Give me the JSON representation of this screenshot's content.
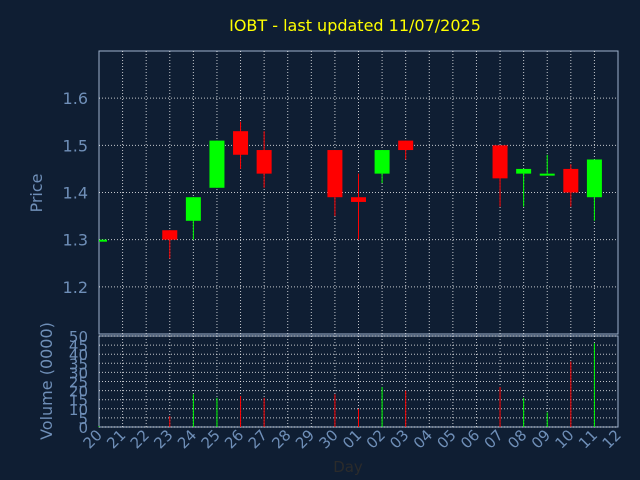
{
  "chart_data": {
    "type": "candlestick",
    "title": "IOBT - last updated 11/07/2025",
    "xlabel": "Day",
    "price_axis": {
      "label": "Price",
      "ylim": [
        1.1,
        1.7
      ],
      "ticks": [
        "1.2",
        "1.3",
        "1.4",
        "1.5",
        "1.6"
      ]
    },
    "volume_axis": {
      "label": "Volume (0000)",
      "ylim": [
        0,
        50
      ],
      "ticks": [
        "0",
        "5",
        "10",
        "15",
        "20",
        "25",
        "30",
        "35",
        "40",
        "45",
        "50"
      ]
    },
    "x_ticks": [
      "20",
      "21",
      "22",
      "23",
      "24",
      "25",
      "26",
      "27",
      "28",
      "29",
      "30",
      "01",
      "02",
      "03",
      "04",
      "05",
      "06",
      "07",
      "08",
      "09",
      "10",
      "11",
      "12"
    ],
    "grid": true,
    "colors": {
      "background": "#0f1e33",
      "up": "#00ff00",
      "down": "#ff0000",
      "title": "#ffff00",
      "axis_text": "#6f8fb8",
      "grid": "#ffffff"
    },
    "candles": [
      {
        "day": "20",
        "open": 1.3,
        "high": 1.3,
        "low": 1.3,
        "close": 1.3,
        "volume": 0.5
      },
      {
        "day": "23",
        "open": 1.32,
        "high": 1.32,
        "low": 1.26,
        "close": 1.3,
        "volume": 6
      },
      {
        "day": "24",
        "open": 1.34,
        "high": 1.39,
        "low": 1.3,
        "close": 1.39,
        "volume": 18
      },
      {
        "day": "25",
        "open": 1.41,
        "high": 1.51,
        "low": 1.41,
        "close": 1.51,
        "volume": 16
      },
      {
        "day": "26",
        "open": 1.53,
        "high": 1.55,
        "low": 1.45,
        "close": 1.48,
        "volume": 17
      },
      {
        "day": "27",
        "open": 1.49,
        "high": 1.53,
        "low": 1.41,
        "close": 1.44,
        "volume": 16
      },
      {
        "day": "30",
        "open": 1.49,
        "high": 1.49,
        "low": 1.35,
        "close": 1.39,
        "volume": 18
      },
      {
        "day": "01",
        "open": 1.39,
        "high": 1.44,
        "low": 1.3,
        "close": 1.38,
        "volume": 10
      },
      {
        "day": "02",
        "open": 1.44,
        "high": 1.49,
        "low": 1.42,
        "close": 1.49,
        "volume": 22
      },
      {
        "day": "03",
        "open": 1.51,
        "high": 1.51,
        "low": 1.47,
        "close": 1.49,
        "volume": 20
      },
      {
        "day": "07",
        "open": 1.5,
        "high": 1.5,
        "low": 1.37,
        "close": 1.43,
        "volume": 22
      },
      {
        "day": "08",
        "open": 1.44,
        "high": 1.45,
        "low": 1.37,
        "close": 1.45,
        "volume": 16
      },
      {
        "day": "09",
        "open": 1.44,
        "high": 1.48,
        "low": 1.44,
        "close": 1.44,
        "volume": 8
      },
      {
        "day": "10",
        "open": 1.45,
        "high": 1.46,
        "low": 1.37,
        "close": 1.4,
        "volume": 36
      },
      {
        "day": "11",
        "open": 1.39,
        "high": 1.47,
        "low": 1.34,
        "close": 1.47,
        "volume": 46
      }
    ]
  }
}
